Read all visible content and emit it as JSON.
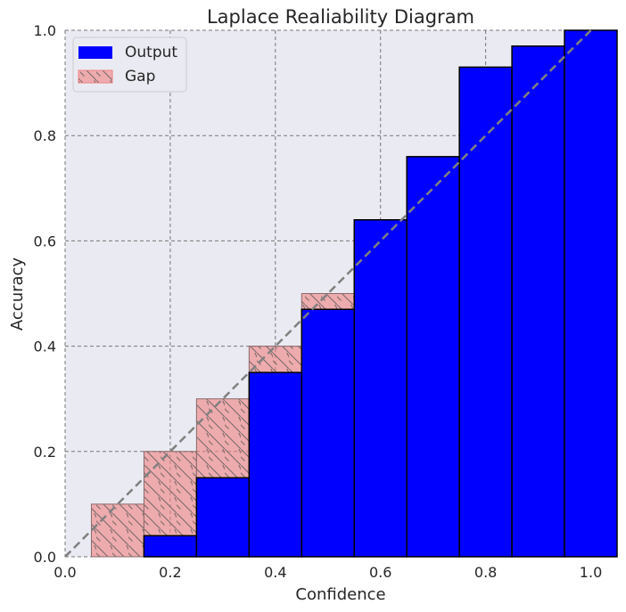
{
  "chart_data": {
    "type": "bar",
    "title": "Laplace Realiability Diagram",
    "xlabel": "Confidence",
    "ylabel": "Accuracy",
    "xlim": [
      0.0,
      1.05
    ],
    "ylim": [
      0.0,
      1.0
    ],
    "xticks": [
      "0.0",
      "0.2",
      "0.4",
      "0.6",
      "0.8",
      "1.0"
    ],
    "yticks": [
      "0.0",
      "0.2",
      "0.4",
      "0.6",
      "0.8",
      "1.0"
    ],
    "grid": true,
    "legend_position": "top-left",
    "bin_width": 0.1,
    "bin_centers": [
      0.1,
      0.2,
      0.3,
      0.4,
      0.5,
      0.6,
      0.7,
      0.8,
      0.9,
      1.0
    ],
    "series": [
      {
        "name": "Output",
        "color": "#0000ff",
        "values": [
          0.0,
          0.04,
          0.15,
          0.35,
          0.47,
          0.64,
          0.76,
          0.93,
          0.97,
          1.0
        ]
      },
      {
        "name": "Gap",
        "color": "#f08080",
        "values": [
          0.1,
          0.2,
          0.3,
          0.4,
          0.5,
          0.6,
          0.7,
          0.8,
          0.9,
          1.0
        ]
      }
    ],
    "diagonal": {
      "from": [
        0,
        0
      ],
      "to": [
        1,
        1
      ],
      "color": "#808080",
      "style": "dashed"
    }
  }
}
